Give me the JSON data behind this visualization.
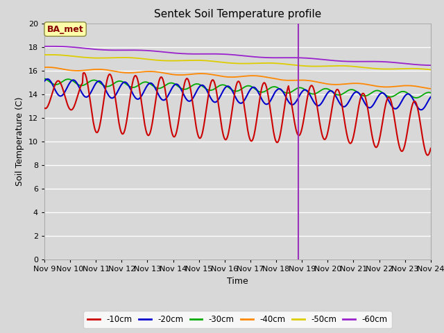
{
  "title": "Sentek Soil Temperature profile",
  "xlabel": "Time",
  "ylabel": "Soil Temperature (C)",
  "ylim": [
    0,
    20
  ],
  "yticks": [
    0,
    2,
    4,
    6,
    8,
    10,
    12,
    14,
    16,
    18,
    20
  ],
  "colors": {
    "-10cm": "#cc0000",
    "-20cm": "#0000cc",
    "-30cm": "#00aa00",
    "-40cm": "#ff8800",
    "-50cm": "#ddcc00",
    "-60cm": "#9922cc"
  },
  "annotation_label": "BA_met",
  "annotation_color": "#880000",
  "annotation_box_color": "#ffffaa",
  "vline_color": "#9933bb",
  "bg_color": "#d8d8d8",
  "grid_color": "#ffffff",
  "xtick_labels": [
    "Nov 9",
    "Nov 10",
    "Nov 11",
    "Nov 12",
    "Nov 13",
    "Nov 14",
    "Nov 15",
    "Nov 16",
    "Nov 17",
    "Nov 18",
    "Nov 19",
    "Nov 20",
    "Nov 21",
    "Nov 22",
    "Nov 23",
    "Nov 24"
  ],
  "xtick_positions": [
    9,
    10,
    11,
    12,
    13,
    14,
    15,
    16,
    17,
    18,
    19,
    20,
    21,
    22,
    23,
    24
  ]
}
